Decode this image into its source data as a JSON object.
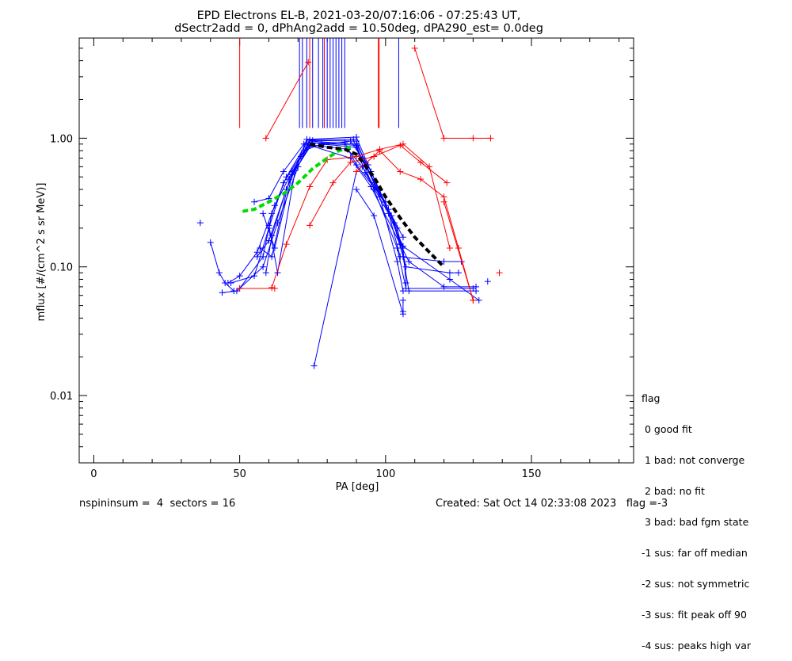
{
  "chart_data": {
    "type": "scatter",
    "title": "EPD Electrons EL-B, 2021-03-20/07:16:06 - 07:25:43 UT,",
    "subtitle": "dSectr2add = 0, dPhAng2add = 10.50deg, dPA290_est=   0.0deg",
    "xlabel": "PA [deg]",
    "ylabel": "mflux [#/(cm^2 s sr MeV)]",
    "xlim": [
      -5,
      185
    ],
    "ylim": [
      0.003,
      6
    ],
    "yscale": "log",
    "x_ticks": [
      0,
      50,
      100,
      150
    ],
    "x_tick_labels": [
      "0",
      "50",
      "100",
      "150"
    ],
    "y_ticks": [
      0.01,
      0.1,
      1.0
    ],
    "y_tick_labels": [
      "0.01",
      "0.10",
      "1.00"
    ],
    "colors": {
      "blue": "#0000ff",
      "red": "#ff0000",
      "green": "#00dd00",
      "black": "#000000"
    },
    "vertical_markers": {
      "color_note": "blue and red vertical lines from top edge",
      "blue_x": [
        70.5,
        71.5,
        73,
        75,
        77,
        78.5,
        80,
        81,
        82,
        83,
        84,
        85,
        86,
        104.5
      ],
      "red_x": [
        50,
        74,
        79,
        97.5,
        97.8
      ],
      "bottom_y": 1.2
    },
    "series": [
      {
        "color": "blue",
        "points": [
          [
            36.5,
            0.22
          ]
        ]
      },
      {
        "color": "blue",
        "points": [
          [
            40,
            0.155
          ],
          [
            43,
            0.09
          ],
          [
            45,
            0.075
          ],
          [
            48,
            0.065
          ]
        ]
      },
      {
        "color": "blue",
        "points": [
          [
            44,
            0.063
          ],
          [
            49,
            0.065
          ],
          [
            58,
            0.1
          ],
          [
            63,
            0.22
          ],
          [
            70,
            0.6
          ],
          [
            74,
            0.95
          ],
          [
            90,
            0.9
          ],
          [
            95,
            0.55
          ],
          [
            100,
            0.3
          ],
          [
            106,
            0.14
          ],
          [
            107,
            0.075
          ]
        ]
      },
      {
        "color": "blue",
        "points": [
          [
            46,
            0.075
          ],
          [
            50,
            0.085
          ],
          [
            56,
            0.13
          ],
          [
            62,
            0.3
          ],
          [
            68,
            0.55
          ],
          [
            73,
            0.85
          ],
          [
            88,
            0.95
          ],
          [
            92,
            0.7
          ],
          [
            102,
            0.25
          ],
          [
            106,
            0.12
          ],
          [
            108,
            0.065
          ],
          [
            131,
            0.065
          ]
        ]
      },
      {
        "color": "blue",
        "points": [
          [
            47,
            0.075
          ],
          [
            55,
            0.085
          ],
          [
            60,
            0.2
          ],
          [
            65,
            0.45
          ],
          [
            72,
            0.8
          ],
          [
            78,
            0.9
          ],
          [
            90,
            0.85
          ],
          [
            96,
            0.45
          ],
          [
            104,
            0.2
          ],
          [
            107,
            0.1
          ],
          [
            122,
            0.09
          ],
          [
            125,
            0.09
          ]
        ]
      },
      {
        "color": "blue",
        "points": [
          [
            50,
            0.068
          ],
          [
            58,
            0.12
          ],
          [
            61,
            0.26
          ],
          [
            66,
            0.5
          ],
          [
            73,
            0.92
          ],
          [
            86,
            0.92
          ],
          [
            90,
            0.62
          ],
          [
            100,
            0.32
          ],
          [
            105,
            0.12
          ],
          [
            120,
            0.11
          ],
          [
            126,
            0.11
          ]
        ]
      },
      {
        "color": "blue",
        "points": [
          [
            55,
            0.32
          ],
          [
            60,
            0.34
          ],
          [
            65,
            0.55
          ],
          [
            72,
            0.9
          ],
          [
            87,
            0.82
          ],
          [
            92,
            0.6
          ],
          [
            101,
            0.28
          ],
          [
            106,
            0.17
          ]
        ]
      },
      {
        "color": "blue",
        "points": [
          [
            56,
            0.12
          ],
          [
            60,
            0.16
          ],
          [
            66,
            0.4
          ],
          [
            73,
            0.98
          ],
          [
            90,
            1.02
          ],
          [
            94,
            0.62
          ],
          [
            103,
            0.22
          ],
          [
            105,
            0.15
          ],
          [
            122,
            0.08
          ],
          [
            132,
            0.055
          ]
        ]
      },
      {
        "color": "blue",
        "points": [
          [
            57,
            0.14
          ],
          [
            61,
            0.12
          ],
          [
            67,
            0.48
          ],
          [
            74,
            0.97
          ],
          [
            89,
            0.98
          ],
          [
            93,
            0.54
          ],
          [
            101,
            0.26
          ],
          [
            106,
            0.145
          ]
        ]
      },
      {
        "color": "blue",
        "points": [
          [
            58,
            0.26
          ],
          [
            62,
            0.14
          ],
          [
            68,
            0.52
          ],
          [
            75,
            0.92
          ],
          [
            90,
            0.88
          ],
          [
            96,
            0.4
          ],
          [
            104,
            0.14
          ],
          [
            107,
            0.068
          ],
          [
            130,
            0.068
          ]
        ]
      },
      {
        "color": "blue",
        "points": [
          [
            59,
            0.09
          ],
          [
            61,
            0.175
          ],
          [
            66,
            0.4
          ],
          [
            71,
            0.72
          ],
          [
            75,
            0.96
          ],
          [
            90,
            0.95
          ],
          [
            98,
            0.35
          ],
          [
            104,
            0.11
          ],
          [
            106,
            0.065
          ]
        ]
      },
      {
        "color": "blue",
        "points": [
          [
            60,
            0.21
          ],
          [
            63,
            0.09
          ],
          [
            69,
            0.56
          ],
          [
            74,
            0.88
          ],
          [
            88,
            0.7
          ],
          [
            95,
            0.42
          ],
          [
            105,
            0.15
          ],
          [
            108,
            0.11
          ],
          [
            120,
            0.07
          ],
          [
            131,
            0.07
          ]
        ]
      },
      {
        "color": "blue",
        "points": [
          [
            75.5,
            0.017
          ],
          [
            90,
            0.55
          ]
        ]
      },
      {
        "color": "blue",
        "points": [
          [
            90,
            0.4
          ],
          [
            96,
            0.25
          ],
          [
            106,
            0.043
          ]
        ]
      },
      {
        "color": "blue",
        "points": [
          [
            106,
            0.045
          ],
          [
            106,
            0.055
          ]
        ]
      },
      {
        "color": "blue",
        "points": [
          [
            135,
            0.077
          ]
        ]
      },
      {
        "color": "red",
        "points": [
          [
            59,
            1.0
          ],
          [
            73.5,
            3.9
          ]
        ]
      },
      {
        "color": "red",
        "points": [
          [
            62,
            0.068
          ],
          [
            50,
            0.068
          ]
        ]
      },
      {
        "color": "red",
        "points": [
          [
            61,
            0.069
          ],
          [
            66,
            0.15
          ],
          [
            74,
            0.42
          ],
          [
            80,
            0.68
          ],
          [
            90,
            0.72
          ],
          [
            98,
            0.82
          ],
          [
            106,
            0.9
          ],
          [
            115,
            0.6
          ],
          [
            122,
            0.14
          ]
        ]
      },
      {
        "color": "red",
        "points": [
          [
            74,
            0.21
          ],
          [
            82,
            0.45
          ],
          [
            88,
            0.65
          ],
          [
            96,
            0.72
          ],
          [
            105,
            0.88
          ],
          [
            112,
            0.65
          ],
          [
            121,
            0.45
          ]
        ]
      },
      {
        "color": "red",
        "points": [
          [
            90,
            0.55
          ],
          [
            98,
            0.8
          ],
          [
            105,
            0.55
          ],
          [
            112,
            0.48
          ],
          [
            120,
            0.35
          ],
          [
            125,
            0.14
          ],
          [
            130,
            0.055
          ]
        ]
      },
      {
        "color": "red",
        "points": [
          [
            120,
            0.32
          ],
          [
            130,
            0.055
          ]
        ]
      },
      {
        "color": "red",
        "points": [
          [
            110,
            5.0
          ],
          [
            120,
            1.0
          ],
          [
            130,
            1.0
          ],
          [
            136,
            1.0
          ]
        ]
      },
      {
        "color": "red",
        "points": [
          [
            139,
            0.09
          ]
        ]
      }
    ],
    "fits": [
      {
        "color": "green",
        "style": "dashed",
        "points": [
          [
            51,
            0.27
          ],
          [
            55,
            0.28
          ],
          [
            60,
            0.32
          ],
          [
            65,
            0.37
          ],
          [
            70,
            0.45
          ],
          [
            75,
            0.58
          ],
          [
            80,
            0.7
          ],
          [
            84,
            0.8
          ],
          [
            88,
            0.85
          ]
        ]
      },
      {
        "color": "black",
        "style": "dashed",
        "points": [
          [
            74,
            0.9
          ],
          [
            80,
            0.85
          ],
          [
            86,
            0.82
          ],
          [
            90,
            0.75
          ],
          [
            96,
            0.5
          ],
          [
            100,
            0.35
          ],
          [
            105,
            0.24
          ],
          [
            110,
            0.17
          ],
          [
            115,
            0.13
          ],
          [
            120,
            0.1
          ]
        ]
      }
    ]
  },
  "legend": {
    "lines": [
      "flag",
      " 0 good fit",
      " 1 bad: not converge",
      " 2 bad: no fit",
      " 3 bad: bad fgm state",
      "-1 sus: far off median",
      "-2 sus: not symmetric",
      "-3 sus: fit peak off 90",
      "-4 sus: peaks high var"
    ]
  },
  "footer": {
    "left": "nspininsum =  4  sectors = 16",
    "right": "Created: Sat Oct 14 02:33:08 2023   flag =-3"
  }
}
